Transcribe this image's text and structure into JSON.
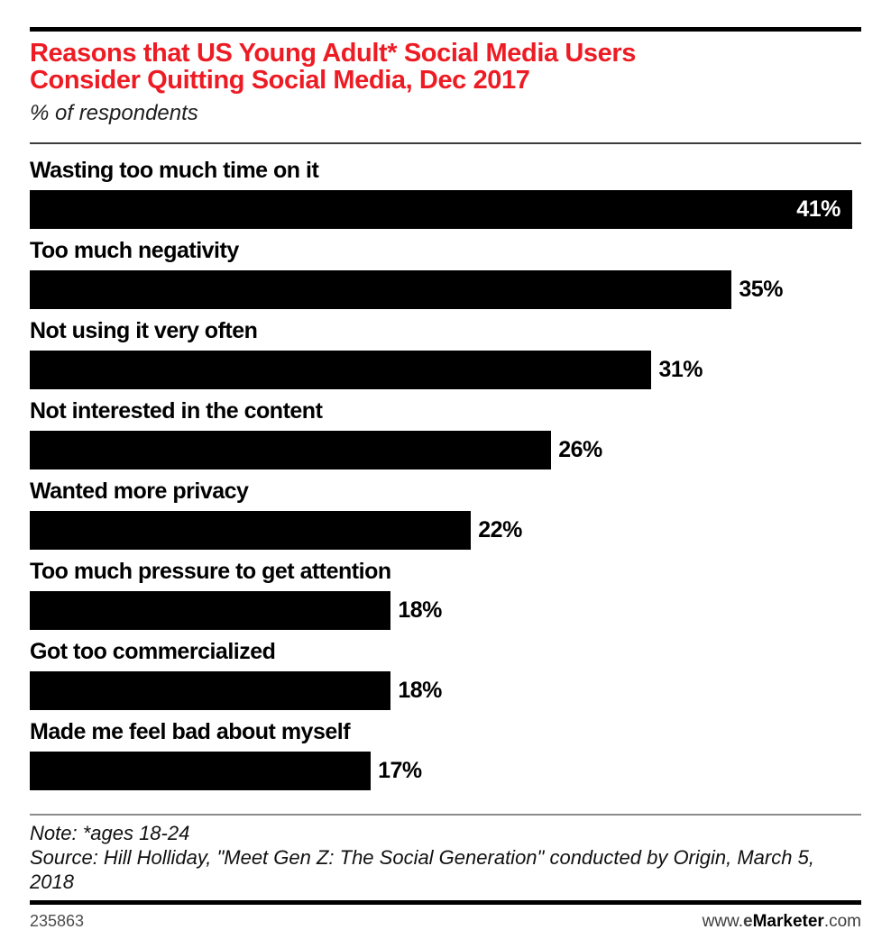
{
  "header": {
    "title_line1": "Reasons that US Young Adult* Social Media Users",
    "title_line2": "Consider Quitting Social Media, Dec 2017",
    "subtitle": "% of respondents"
  },
  "chart_data": {
    "type": "bar",
    "orientation": "horizontal",
    "title": "Reasons that US Young Adult* Social Media Users Consider Quitting Social Media, Dec 2017",
    "subtitle": "% of respondents",
    "categories": [
      "Wasting too much time on it",
      "Too much negativity",
      "Not using it very often",
      "Not interested in the content",
      "Wanted more privacy",
      "Too much pressure to get attention",
      "Got too commercialized",
      "Made me feel bad about myself"
    ],
    "values": [
      41,
      35,
      31,
      26,
      22,
      18,
      18,
      17
    ],
    "unit": "%",
    "xlim": [
      0,
      41.5
    ],
    "bar_color": "#000000",
    "grid": false,
    "legend": false,
    "value_label_style": "bold, outside bar end; longest bar labeled inside in white"
  },
  "footer": {
    "note": "Note: *ages 18-24",
    "source": "Source: Hill Holliday, \"Meet Gen Z: The Social Generation\" conducted by Origin, March 5, 2018",
    "chart_id": "235863",
    "website": {
      "prefix": "www.",
      "brand_e": "e",
      "brand_rest": "Marketer",
      "suffix": ".com"
    }
  },
  "colors": {
    "accent_red": "#ed1c24",
    "bar": "#000000",
    "rule_dark": "#000000",
    "rule_gray": "#8c8c8c"
  }
}
